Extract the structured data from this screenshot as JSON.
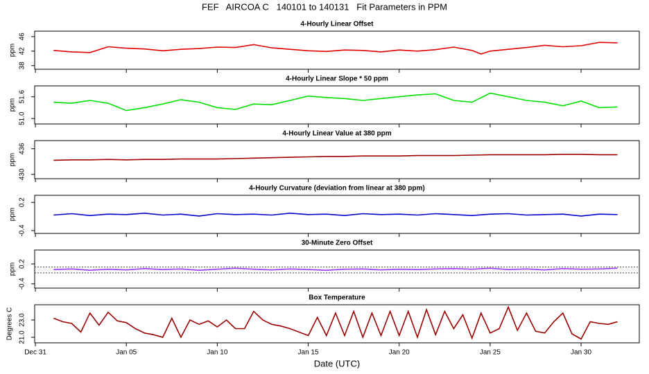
{
  "title": "FEF   AIRCOA C   140101 to 140131   Fit Parameters in PPM",
  "chart_data": [
    {
      "type": "line",
      "title": "4-Hourly Linear Offset",
      "y_label": "ppm",
      "color": "#e00000",
      "xlim": [
        -0.04,
        33.2
      ],
      "ylim": [
        37,
        47.5
      ],
      "yticks": [
        38,
        42,
        46
      ],
      "x": [
        1,
        2,
        3,
        4,
        5,
        6,
        7,
        8,
        9,
        10,
        11,
        12,
        13,
        14,
        15,
        16,
        17,
        18,
        19,
        20,
        21,
        22,
        23,
        24,
        24.5,
        25,
        26,
        27,
        28,
        29,
        30,
        31,
        32
      ],
      "values": [
        42.2,
        41.8,
        41.6,
        43.2,
        42.8,
        42.6,
        42.1,
        42.5,
        42.7,
        43.1,
        43.0,
        43.8,
        42.9,
        42.5,
        42.1,
        41.9,
        42.3,
        42.2,
        41.8,
        42.3,
        42.0,
        42.4,
        43.1,
        42.2,
        41.2,
        42.0,
        42.5,
        43.0,
        43.6,
        43.2,
        43.5,
        44.4,
        44.3
      ]
    },
    {
      "type": "line",
      "title": "4-Hourly Linear Slope * 50 ppm",
      "y_label": "ppm",
      "color": "#00e000",
      "xlim": [
        -0.04,
        33.2
      ],
      "ylim": [
        50.85,
        51.9
      ],
      "yticks": [
        {
          "value": 51,
          "label": "51.0"
        },
        51.6
      ],
      "x": [
        1,
        2,
        3,
        4,
        5,
        6,
        7,
        8,
        9,
        10,
        11,
        12,
        13,
        14,
        15,
        16,
        17,
        18,
        19,
        20,
        21,
        22,
        23,
        24,
        25,
        26,
        27,
        28,
        29,
        30,
        31,
        32
      ],
      "values": [
        51.45,
        51.42,
        51.5,
        51.42,
        51.22,
        51.3,
        51.4,
        51.52,
        51.45,
        51.3,
        51.25,
        51.4,
        51.38,
        51.5,
        51.62,
        51.58,
        51.55,
        51.5,
        51.55,
        51.6,
        51.65,
        51.68,
        51.5,
        51.45,
        51.7,
        51.6,
        51.5,
        51.45,
        51.35,
        51.48,
        51.3,
        51.32
      ]
    },
    {
      "type": "line",
      "title": "4-Hourly Linear Value at 380 ppm",
      "y_label": "ppm",
      "color": "#a00000",
      "xlim": [
        -0.04,
        33.2
      ],
      "ylim": [
        429,
        437.9
      ],
      "yticks": [
        430,
        436
      ],
      "x": [
        1,
        2,
        3,
        4,
        5,
        6,
        7,
        8,
        9,
        10,
        11,
        12,
        13,
        14,
        15,
        16,
        17,
        18,
        19,
        20,
        21,
        22,
        23,
        24,
        25,
        26,
        27,
        28,
        29,
        30,
        31,
        32
      ],
      "values": [
        433.3,
        433.4,
        433.4,
        433.5,
        433.4,
        433.5,
        433.5,
        433.6,
        433.6,
        433.6,
        433.7,
        433.8,
        433.9,
        434.0,
        434.1,
        434.2,
        434.2,
        434.3,
        434.3,
        434.3,
        434.4,
        434.4,
        434.4,
        434.5,
        434.6,
        434.6,
        434.6,
        434.6,
        434.7,
        434.7,
        434.6,
        434.6
      ]
    },
    {
      "type": "line",
      "title": "4-Hourly Curvature (deviation from linear at 380 ppm)",
      "y_label": "ppm",
      "color": "#0000cc",
      "xlim": [
        -0.04,
        33.2
      ],
      "ylim": [
        -0.46,
        0.35
      ],
      "yticks": [
        -0.4,
        0.2
      ],
      "x": [
        1,
        2,
        3,
        4,
        5,
        6,
        7,
        8,
        9,
        10,
        11,
        12,
        13,
        14,
        15,
        16,
        17,
        18,
        19,
        20,
        21,
        22,
        23,
        24,
        25,
        26,
        27,
        28,
        29,
        30,
        31,
        32
      ],
      "values": [
        -0.07,
        -0.04,
        -0.08,
        -0.05,
        -0.06,
        -0.03,
        -0.07,
        -0.05,
        -0.09,
        -0.04,
        -0.06,
        -0.05,
        -0.07,
        -0.03,
        -0.06,
        -0.05,
        -0.08,
        -0.04,
        -0.06,
        -0.05,
        -0.07,
        -0.04,
        -0.06,
        -0.08,
        -0.05,
        -0.04,
        -0.07,
        -0.06,
        -0.05,
        -0.09,
        -0.05,
        -0.06
      ]
    },
    {
      "type": "line",
      "title": "30-Minute Zero Offset",
      "y_label": "ppm",
      "color": "#9933ff",
      "xlim": [
        -0.04,
        33.2
      ],
      "ylim": [
        -0.53,
        0.62
      ],
      "yticks": [
        -0.4,
        0.2
      ],
      "hlines": [
        0.11,
        -0.07
      ],
      "x": [
        1,
        2,
        3,
        4,
        5,
        6,
        7,
        8,
        9,
        10,
        11,
        12,
        13,
        14,
        15,
        16,
        17,
        18,
        19,
        20,
        21,
        22,
        23,
        24,
        25,
        26,
        27,
        28,
        29,
        30,
        31,
        32
      ],
      "values": [
        0.03,
        0.05,
        0.01,
        0.04,
        0.02,
        0.06,
        0.03,
        0.05,
        0.01,
        0.04,
        0.07,
        0.04,
        0.02,
        0.05,
        0.03,
        0.01,
        0.04,
        0.05,
        0.02,
        0.04,
        0.03,
        0.05,
        0.06,
        0.04,
        0.07,
        0.03,
        0.05,
        0.02,
        0.06,
        0.04,
        0.05,
        0.07
      ]
    },
    {
      "type": "line",
      "title": "Box Temperature",
      "y_label": "Degrees C",
      "color": "#990000",
      "x_label": "Date (UTC)",
      "xlim": [
        -0.04,
        33.2
      ],
      "ylim": [
        20.36,
        24.76
      ],
      "yticks": [
        {
          "value": 21,
          "label": "21.0"
        },
        {
          "value": 23,
          "label": "23.0"
        }
      ],
      "xticks": [
        {
          "value": 0,
          "label": "Dec 31"
        },
        {
          "value": 5,
          "label": "Jan 05"
        },
        {
          "value": 10,
          "label": "Jan 10"
        },
        {
          "value": 15,
          "label": "Jan 15"
        },
        {
          "value": 20,
          "label": "Jan 20"
        },
        {
          "value": 25,
          "label": "Jan 25"
        },
        {
          "value": 30,
          "label": "Jan 30"
        }
      ],
      "x": [
        1,
        1.5,
        2,
        2.5,
        3,
        3.5,
        4,
        4.5,
        5,
        5.5,
        6,
        6.5,
        7,
        7.5,
        8,
        8.5,
        9,
        9.5,
        10,
        10.5,
        11,
        11.5,
        12,
        12.5,
        13,
        13.5,
        14,
        14.5,
        15,
        15.5,
        16,
        16.5,
        17,
        17.5,
        18,
        18.5,
        19,
        19.5,
        20,
        20.5,
        21,
        21.5,
        22,
        22.5,
        23,
        23.5,
        24,
        24.5,
        25,
        25.5,
        26,
        26.5,
        27,
        27.5,
        28,
        28.5,
        29,
        29.5,
        30,
        30.5,
        31,
        31.5,
        32
      ],
      "values": [
        23.2,
        22.8,
        22.6,
        21.6,
        23.8,
        22.4,
        23.9,
        22.9,
        22.7,
        22.0,
        21.5,
        21.3,
        21.0,
        23.2,
        21.0,
        23.0,
        22.5,
        22.9,
        22.2,
        23.0,
        22.0,
        22.0,
        24.0,
        23.0,
        22.5,
        22.3,
        22.0,
        21.6,
        21.2,
        23.3,
        21.2,
        23.8,
        21.2,
        24.0,
        21.0,
        23.8,
        21.2,
        24.0,
        21.2,
        24.0,
        21.0,
        24.2,
        21.3,
        24.0,
        22.0,
        23.6,
        20.9,
        23.8,
        21.5,
        22.0,
        24.5,
        21.8,
        23.8,
        21.7,
        21.5,
        22.8,
        23.8,
        21.4,
        20.8,
        22.8,
        22.6,
        22.5,
        22.8
      ]
    }
  ]
}
